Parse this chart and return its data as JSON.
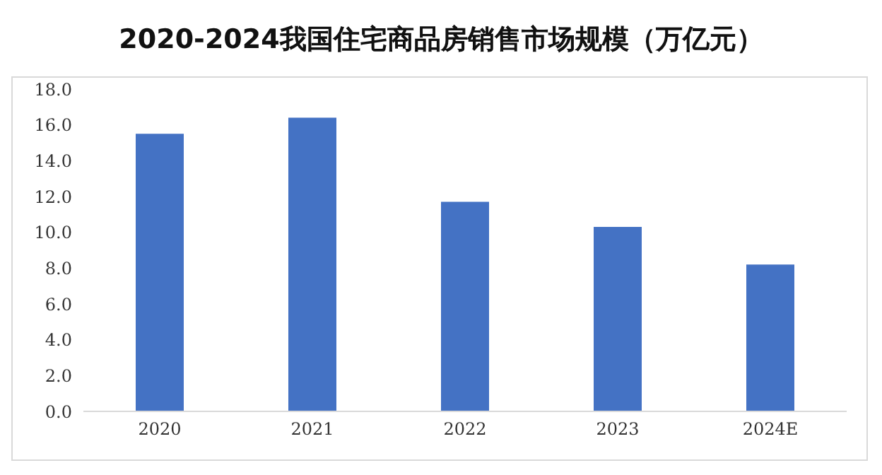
{
  "chart_data": {
    "type": "bar",
    "title": "2020-2024我国住宅商品房销售市场规模（万亿元）",
    "categories": [
      "2020",
      "2021",
      "2022",
      "2023",
      "2024E"
    ],
    "values": [
      15.5,
      16.4,
      11.7,
      10.3,
      8.2
    ],
    "color": "#4472c4",
    "ylim": [
      0,
      18
    ],
    "yticks": [
      {
        "value": 0,
        "label": "0.0"
      },
      {
        "value": 2,
        "label": "2.0"
      },
      {
        "value": 4,
        "label": "4.0"
      },
      {
        "value": 6,
        "label": "6.0"
      },
      {
        "value": 8,
        "label": "8.0"
      },
      {
        "value": 10,
        "label": "10.0"
      },
      {
        "value": 12,
        "label": "12.0"
      },
      {
        "value": 14,
        "label": "14.0"
      },
      {
        "value": 16,
        "label": "16.0"
      },
      {
        "value": 18,
        "label": "18.0"
      }
    ],
    "grid": false
  }
}
